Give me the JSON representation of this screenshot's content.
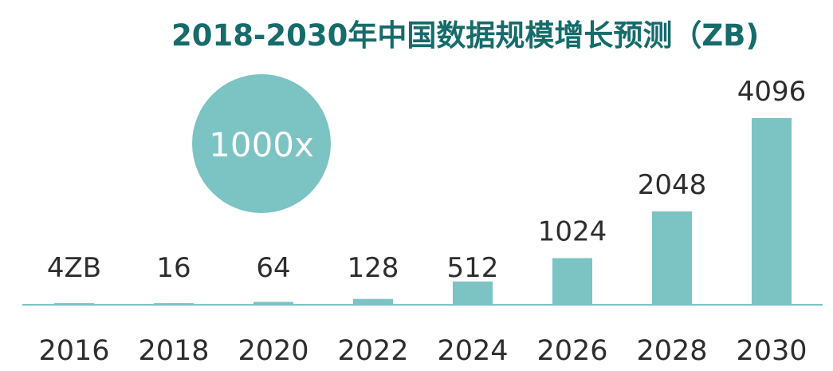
{
  "chart_data": {
    "type": "bar",
    "title": "2018-2030年中国数据规模增长预测（ZB)",
    "categories": [
      "2016",
      "2018",
      "2020",
      "2022",
      "2024",
      "2026",
      "2028",
      "2030"
    ],
    "values": [
      4,
      16,
      64,
      128,
      512,
      1024,
      2048,
      4096
    ],
    "value_labels": [
      "4ZB",
      "16",
      "64",
      "128",
      "512",
      "1024",
      "2048",
      "4096"
    ],
    "callout": "1000x",
    "xlabel": "",
    "ylabel": "",
    "grid": false,
    "colors": {
      "bar": "#7cc3c3",
      "baseline": "#7cc3c3",
      "callout_circle": "#7cc3c3",
      "title": "#166b6b",
      "text": "#2d2d2d"
    }
  }
}
